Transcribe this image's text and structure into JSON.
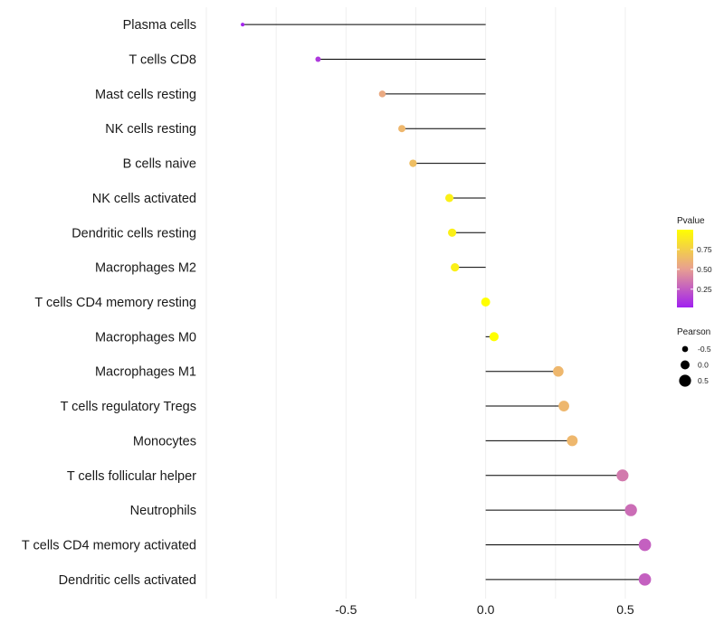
{
  "chart_data": {
    "type": "lollipop",
    "categories": [
      "Plasma cells",
      "T cells CD8",
      "Mast cells resting",
      "NK cells resting",
      "B cells naive",
      "NK cells activated",
      "Dendritic cells resting",
      "Macrophages M2",
      "T cells CD4 memory resting",
      "Macrophages M0",
      "Macrophages M1",
      "T cells regulatory  Tregs ",
      "Monocytes",
      "T cells follicular helper",
      "Neutrophils",
      "T cells CD4 memory activated",
      "Dendritic cells activated"
    ],
    "values": [
      -0.87,
      -0.6,
      -0.37,
      -0.3,
      -0.26,
      -0.13,
      -0.12,
      -0.11,
      0.0,
      0.03,
      0.26,
      0.28,
      0.31,
      0.49,
      0.52,
      0.57,
      0.57
    ],
    "pvalues": [
      0.02,
      0.1,
      0.55,
      0.62,
      0.66,
      0.92,
      0.92,
      0.92,
      1.0,
      1.0,
      0.62,
      0.62,
      0.62,
      0.35,
      0.3,
      0.25,
      0.25
    ],
    "xlim": [
      -1.0,
      0.62
    ],
    "x_ticks": [
      -0.5,
      0.0,
      0.5
    ],
    "x_tick_labels": [
      "-0.5",
      "0.0",
      "0.5"
    ],
    "xlabel": "",
    "ylabel": "",
    "color_scale": {
      "low": "#a020f0",
      "mid": "#e8a090",
      "high": "#ffff00"
    },
    "legend": {
      "color_title": "Pvalue",
      "color_ticks": [
        0.25,
        0.5,
        0.75
      ],
      "color_tick_labels": [
        "0.25",
        "0.50",
        "0.75"
      ],
      "size_title": "Pearson",
      "size_values": [
        -0.5,
        0.0,
        0.5
      ],
      "size_labels": [
        "-0.5",
        "0.0",
        "0.5"
      ],
      "placement": "right"
    }
  }
}
